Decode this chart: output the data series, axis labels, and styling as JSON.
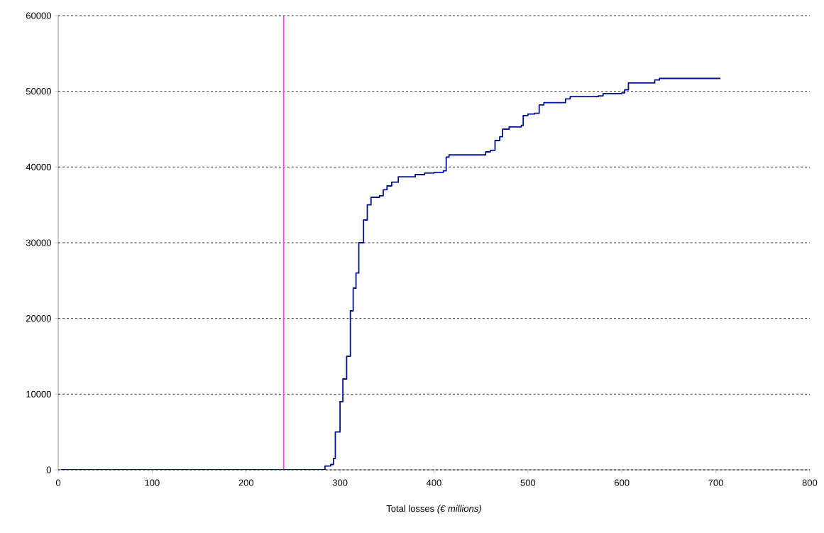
{
  "chart_data": {
    "type": "step",
    "xlabel": "Total losses *(€ millions)*",
    "x": [
      3,
      280,
      284,
      290,
      293,
      295,
      300,
      303,
      307,
      311,
      314,
      317,
      320,
      325,
      329,
      333,
      342,
      346,
      350,
      355,
      362,
      375,
      380,
      390,
      400,
      410,
      413,
      416,
      450,
      455,
      460,
      465,
      470,
      473,
      480,
      493,
      495,
      500,
      507,
      512,
      517,
      535,
      540,
      545,
      575,
      580,
      600,
      603,
      607,
      630,
      635,
      640,
      705
    ],
    "values": [
      0,
      0,
      500,
      700,
      1500,
      5000,
      9000,
      12000,
      15000,
      21000,
      24000,
      26000,
      30000,
      33000,
      35000,
      36000,
      36200,
      37000,
      37500,
      38000,
      38700,
      38700,
      39000,
      39200,
      39300,
      39500,
      41300,
      41600,
      41600,
      42000,
      42200,
      43500,
      44000,
      45000,
      45300,
      45500,
      46800,
      47000,
      47100,
      48200,
      48500,
      48500,
      49000,
      49300,
      49400,
      49700,
      49800,
      50200,
      51100,
      51100,
      51500,
      51700,
      51700
    ],
    "color": "#00128c",
    "xlim": [
      0,
      800
    ],
    "ylim": [
      0,
      60000
    ],
    "xticks": [
      0,
      100,
      200,
      300,
      400,
      500,
      600,
      700,
      800
    ],
    "yticks": [
      0,
      10000,
      20000,
      30000,
      40000,
      50000,
      60000
    ],
    "grid": "y",
    "ref_lines": [
      {
        "axis": "x",
        "value": 240,
        "color": "#ff40ff"
      }
    ]
  }
}
